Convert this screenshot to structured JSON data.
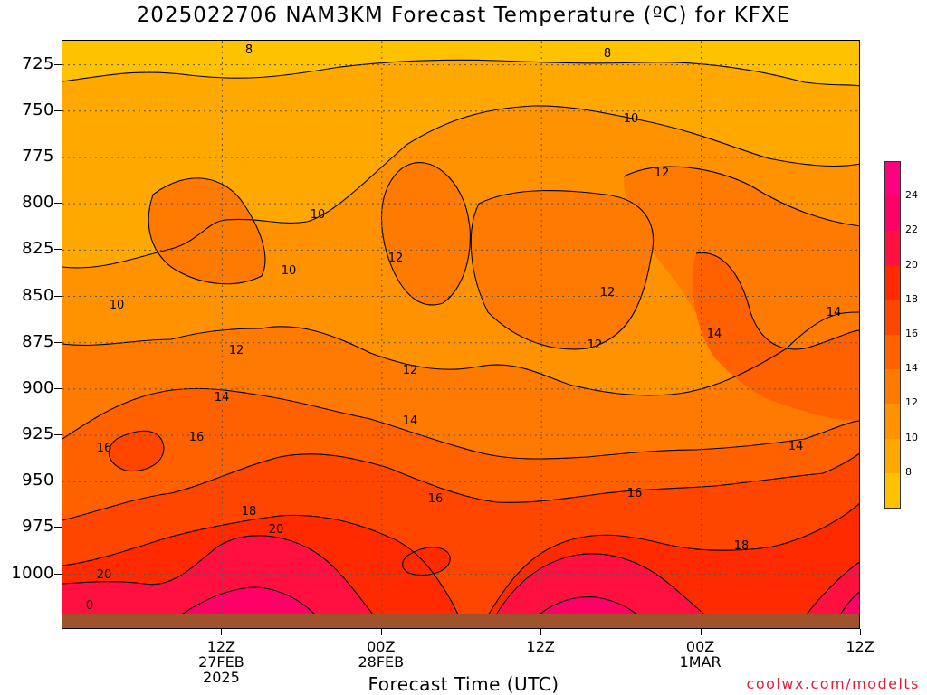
{
  "title": "2025022706 NAM3KM Forecast Temperature (ºC) for KFXE",
  "credit": "coolwx.com/modelts",
  "chart_data": {
    "type": "contour",
    "title": "2025022706 NAM3KM Forecast Temperature (ºC) for KFXE",
    "xlabel": "Forecast Time (UTC)",
    "ylabel": "",
    "y_axis": {
      "ticks": [
        725,
        750,
        775,
        800,
        825,
        850,
        875,
        900,
        925,
        950,
        975,
        1000
      ],
      "range": [
        712,
        1030
      ],
      "inverted": true
    },
    "x_axis": {
      "range_hours": [
        6,
        36
      ],
      "ticks": [
        {
          "hour": 12,
          "line1": "12Z",
          "line2": "27FEB",
          "line3": "2025"
        },
        {
          "hour": 18,
          "line1": "00Z",
          "line2": "28FEB",
          "line3": ""
        },
        {
          "hour": 24,
          "line1": "12Z",
          "line2": "",
          "line3": ""
        },
        {
          "hour": 30,
          "line1": "00Z",
          "line2": "1MAR",
          "line3": ""
        },
        {
          "hour": 36,
          "line1": "12Z",
          "line2": "",
          "line3": ""
        }
      ]
    },
    "grid": true,
    "colorbar": {
      "levels": [
        8,
        10,
        12,
        14,
        16,
        18,
        20,
        22,
        24
      ],
      "colors": [
        "#ffc200",
        "#ffa800",
        "#ff9200",
        "#ff7a00",
        "#ff6000",
        "#ff4600",
        "#ff2a00",
        "#ff1040",
        "#ff0066",
        "#ff0080"
      ]
    },
    "contour_labels": [
      {
        "v": "8"
      },
      {
        "v": "8"
      },
      {
        "v": "10"
      },
      {
        "v": "10"
      },
      {
        "v": "10"
      },
      {
        "v": "10"
      },
      {
        "v": "12"
      },
      {
        "v": "12"
      },
      {
        "v": "12"
      },
      {
        "v": "12"
      },
      {
        "v": "12"
      },
      {
        "v": "12"
      },
      {
        "v": "14"
      },
      {
        "v": "14"
      },
      {
        "v": "14"
      },
      {
        "v": "14"
      },
      {
        "v": "14"
      },
      {
        "v": "16"
      },
      {
        "v": "16"
      },
      {
        "v": "16"
      },
      {
        "v": "16"
      },
      {
        "v": "18"
      },
      {
        "v": "18"
      },
      {
        "v": "20"
      },
      {
        "v": "20"
      },
      {
        "v": "0"
      }
    ]
  }
}
